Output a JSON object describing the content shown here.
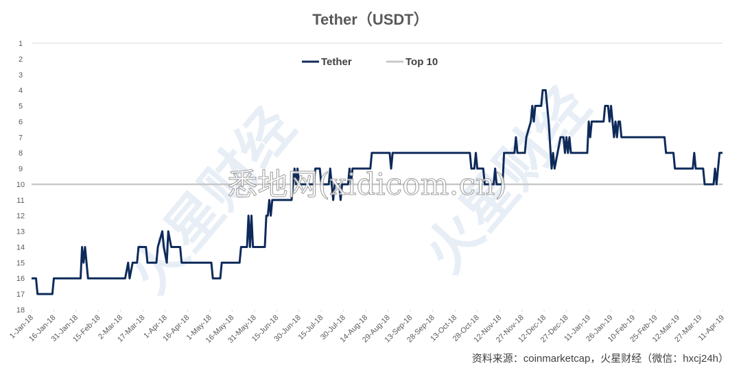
{
  "chart_data": {
    "type": "line",
    "title": "Tether（USDT）",
    "source": "资料来源：coinmarketcap，火星财经（微信：hxcj24h）",
    "watermarks": [
      "悉地网(xidicom.cn)",
      "火星财经"
    ],
    "legend_position": "top",
    "y_inverted": true,
    "ylim": [
      1,
      18
    ],
    "yticks": [
      1,
      2,
      3,
      4,
      5,
      6,
      7,
      8,
      9,
      10,
      11,
      12,
      13,
      14,
      15,
      16,
      17,
      18
    ],
    "xlim": [
      "2018-01-01",
      "2019-04-11"
    ],
    "xticks": [
      {
        "value": "2018-01-01",
        "label": "1-Jan-18"
      },
      {
        "value": "2018-01-16",
        "label": "16-Jan-18"
      },
      {
        "value": "2018-01-31",
        "label": "31-Jan-18"
      },
      {
        "value": "2018-02-15",
        "label": "15-Feb-18"
      },
      {
        "value": "2018-03-02",
        "label": "2-Mar-18"
      },
      {
        "value": "2018-03-17",
        "label": "17-Mar-18"
      },
      {
        "value": "2018-04-01",
        "label": "1-Apr-18"
      },
      {
        "value": "2018-04-16",
        "label": "16-Apr-18"
      },
      {
        "value": "2018-05-01",
        "label": "1-May-18"
      },
      {
        "value": "2018-05-16",
        "label": "16-May-18"
      },
      {
        "value": "2018-05-31",
        "label": "31-May-18"
      },
      {
        "value": "2018-06-15",
        "label": "15-Jun-18"
      },
      {
        "value": "2018-06-30",
        "label": "30-Jun-18"
      },
      {
        "value": "2018-07-15",
        "label": "15-Jul-18"
      },
      {
        "value": "2018-07-30",
        "label": "30-Jul-18"
      },
      {
        "value": "2018-08-14",
        "label": "14-Aug-18"
      },
      {
        "value": "2018-08-29",
        "label": "29-Aug-18"
      },
      {
        "value": "2018-09-13",
        "label": "13-Sep-18"
      },
      {
        "value": "2018-09-28",
        "label": "28-Sep-18"
      },
      {
        "value": "2018-10-13",
        "label": "13-Oct-18"
      },
      {
        "value": "2018-10-28",
        "label": "28-Oct-18"
      },
      {
        "value": "2018-11-12",
        "label": "12-Nov-18"
      },
      {
        "value": "2018-11-27",
        "label": "27-Nov-18"
      },
      {
        "value": "2018-12-12",
        "label": "12-Dec-18"
      },
      {
        "value": "2018-12-27",
        "label": "27-Dec-18"
      },
      {
        "value": "2019-01-11",
        "label": "11-Jan-19"
      },
      {
        "value": "2019-01-26",
        "label": "26-Jan-19"
      },
      {
        "value": "2019-02-10",
        "label": "10-Feb-19"
      },
      {
        "value": "2019-02-25",
        "label": "25-Feb-19"
      },
      {
        "value": "2019-03-12",
        "label": "12-Mar-19"
      },
      {
        "value": "2019-03-27",
        "label": "27-Mar-19"
      },
      {
        "value": "2019-04-11",
        "label": "11-Apr-19"
      }
    ],
    "x": [
      "2018-01-01",
      "2018-01-04",
      "2018-01-05",
      "2018-01-15",
      "2018-01-16",
      "2018-02-03",
      "2018-02-04",
      "2018-02-05",
      "2018-02-06",
      "2018-02-08",
      "2018-03-05",
      "2018-03-07",
      "2018-03-08",
      "2018-03-10",
      "2018-03-13",
      "2018-03-14",
      "2018-03-19",
      "2018-03-20",
      "2018-03-26",
      "2018-03-27",
      "2018-03-30",
      "2018-03-31",
      "2018-04-02",
      "2018-04-03",
      "2018-04-05",
      "2018-04-11",
      "2018-04-12",
      "2018-05-02",
      "2018-05-03",
      "2018-05-08",
      "2018-05-09",
      "2018-05-21",
      "2018-05-22",
      "2018-05-26",
      "2018-05-27",
      "2018-05-28",
      "2018-05-29",
      "2018-05-30",
      "2018-06-07",
      "2018-06-08",
      "2018-06-09",
      "2018-06-10",
      "2018-06-11",
      "2018-06-12",
      "2018-06-25",
      "2018-06-26",
      "2018-06-27",
      "2018-06-28",
      "2018-06-29",
      "2018-06-30",
      "2018-07-10",
      "2018-07-11",
      "2018-07-14",
      "2018-07-15",
      "2018-07-20",
      "2018-07-21",
      "2018-07-23",
      "2018-07-24",
      "2018-07-27",
      "2018-07-28",
      "2018-07-29",
      "2018-08-02",
      "2018-08-03",
      "2018-08-04",
      "2018-08-05",
      "2018-08-17",
      "2018-08-18",
      "2018-08-30",
      "2018-08-31",
      "2018-09-01",
      "2018-10-23",
      "2018-10-24",
      "2018-10-26",
      "2018-10-27",
      "2018-10-28",
      "2018-11-01",
      "2018-11-02",
      "2018-11-08",
      "2018-11-09",
      "2018-11-10",
      "2018-11-14",
      "2018-11-15",
      "2018-11-22",
      "2018-11-23",
      "2018-11-24",
      "2018-11-29",
      "2018-11-30",
      "2018-12-03",
      "2018-12-04",
      "2018-12-05",
      "2018-12-06",
      "2018-12-10",
      "2018-12-11",
      "2018-12-13",
      "2018-12-15",
      "2018-12-17",
      "2018-12-18",
      "2018-12-19",
      "2018-12-21",
      "2018-12-23",
      "2018-12-25",
      "2018-12-26",
      "2018-12-27",
      "2018-12-28",
      "2018-12-29",
      "2018-12-30",
      "2019-01-10",
      "2019-01-11",
      "2019-01-12",
      "2019-01-13",
      "2019-01-21",
      "2019-01-22",
      "2019-01-24",
      "2019-01-25",
      "2019-01-26",
      "2019-01-28",
      "2019-01-29",
      "2019-01-30",
      "2019-01-31",
      "2019-02-01",
      "2019-02-02",
      "2019-03-03",
      "2019-03-04",
      "2019-03-09",
      "2019-03-10",
      "2019-03-22",
      "2019-03-23",
      "2019-03-24",
      "2019-03-29",
      "2019-03-30",
      "2019-04-05",
      "2019-04-06",
      "2019-04-07",
      "2019-04-09",
      "2019-04-11"
    ],
    "series": [
      {
        "name": "Tether",
        "color": "#0e2a5a",
        "values": [
          16,
          16,
          17,
          17,
          16,
          16,
          14,
          15,
          14,
          16,
          16,
          15,
          16,
          15,
          15,
          14,
          14,
          15,
          15,
          14,
          13,
          14,
          15,
          13,
          14,
          14,
          15,
          15,
          16,
          16,
          15,
          15,
          14,
          14,
          12,
          14,
          12,
          14,
          14,
          12,
          12,
          11,
          12,
          11,
          11,
          10,
          9,
          10,
          9,
          10,
          10,
          9,
          9,
          10,
          10,
          9,
          11,
          10,
          10,
          11,
          10,
          10,
          9,
          10,
          9,
          9,
          8,
          8,
          9,
          8,
          8,
          9,
          9,
          8,
          9,
          9,
          10,
          10,
          9,
          10,
          10,
          8,
          8,
          7,
          8,
          8,
          7,
          6,
          5,
          6,
          5,
          5,
          4,
          4,
          6,
          9,
          8,
          9,
          8,
          7,
          7,
          8,
          7,
          8,
          7,
          8,
          8,
          6,
          7,
          6,
          6,
          5,
          5,
          6,
          5,
          7,
          6,
          7,
          6,
          6,
          7,
          7,
          8,
          8,
          9,
          9,
          8,
          9,
          9,
          10,
          10,
          9,
          10,
          8,
          8
        ]
      }
    ],
    "reference_lines": [
      {
        "name": "Top 10",
        "value": 10,
        "color": "#c8c8c8"
      }
    ]
  }
}
